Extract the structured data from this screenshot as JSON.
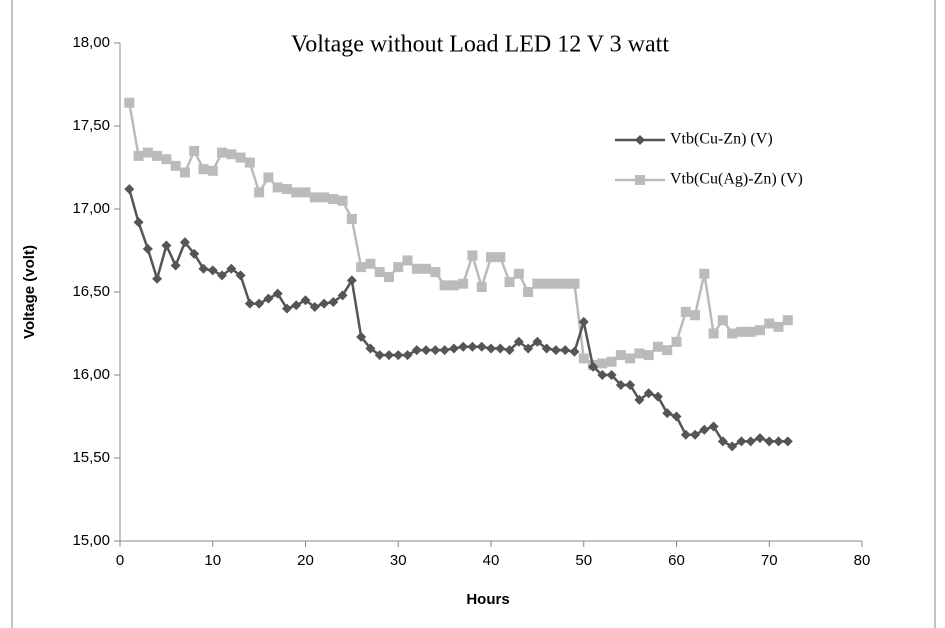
{
  "chart_data": {
    "type": "line",
    "title": "Voltage without Load LED 12 V 3 watt",
    "x_label": "Hours",
    "y_label": "Voltage (volt)",
    "x": [
      1,
      2,
      3,
      4,
      5,
      6,
      7,
      8,
      9,
      10,
      11,
      12,
      13,
      14,
      15,
      16,
      17,
      18,
      19,
      20,
      21,
      22,
      23,
      24,
      25,
      26,
      27,
      28,
      29,
      30,
      31,
      32,
      33,
      34,
      35,
      36,
      37,
      38,
      39,
      40,
      41,
      42,
      43,
      44,
      45,
      46,
      47,
      48,
      49,
      50,
      51,
      52,
      53,
      54,
      55,
      56,
      57,
      58,
      59,
      60,
      61,
      62,
      63,
      64,
      65,
      66,
      67,
      68,
      69,
      70,
      71,
      72
    ],
    "series": [
      {
        "name": "Vtb(Cu-Zn) (V)",
        "color": "#555555",
        "marker": "diamond",
        "values": [
          17.12,
          16.92,
          16.76,
          16.58,
          16.78,
          16.66,
          16.8,
          16.73,
          16.64,
          16.63,
          16.6,
          16.64,
          16.6,
          16.43,
          16.43,
          16.46,
          16.49,
          16.4,
          16.42,
          16.45,
          16.41,
          16.43,
          16.44,
          16.48,
          16.57,
          16.23,
          16.16,
          16.12,
          16.12,
          16.12,
          16.12,
          16.15,
          16.15,
          16.15,
          16.15,
          16.16,
          16.17,
          16.17,
          16.17,
          16.16,
          16.16,
          16.15,
          16.2,
          16.16,
          16.2,
          16.16,
          16.15,
          16.15,
          16.14,
          16.32,
          16.05,
          16.0,
          16.0,
          15.94,
          15.94,
          15.85,
          15.89,
          15.87,
          15.77,
          15.75,
          15.64,
          15.64,
          15.67,
          15.69,
          15.6,
          15.57,
          15.6,
          15.6,
          15.62,
          15.6,
          15.6,
          15.6
        ]
      },
      {
        "name": "Vtb(Cu(Ag)-Zn) (V)",
        "color": "#bbbbbb",
        "marker": "square",
        "values": [
          17.64,
          17.32,
          17.34,
          17.32,
          17.3,
          17.26,
          17.22,
          17.35,
          17.24,
          17.23,
          17.34,
          17.33,
          17.31,
          17.28,
          17.1,
          17.19,
          17.13,
          17.12,
          17.1,
          17.1,
          17.07,
          17.07,
          17.06,
          17.05,
          16.94,
          16.65,
          16.67,
          16.62,
          16.59,
          16.65,
          16.69,
          16.64,
          16.64,
          16.62,
          16.54,
          16.54,
          16.55,
          16.72,
          16.53,
          16.71,
          16.71,
          16.56,
          16.61,
          16.5,
          16.55,
          16.55,
          16.55,
          16.55,
          16.55,
          16.1,
          16.06,
          16.07,
          16.08,
          16.12,
          16.1,
          16.13,
          16.12,
          16.17,
          16.15,
          16.2,
          16.38,
          16.36,
          16.61,
          16.25,
          16.33,
          16.25,
          16.26,
          16.26,
          16.27,
          16.31,
          16.29,
          16.33
        ]
      }
    ],
    "xlim": [
      0,
      80
    ],
    "xticks": [
      0,
      10,
      20,
      30,
      40,
      50,
      60,
      70,
      80
    ],
    "ylim": [
      15,
      18
    ],
    "yticks": [
      {
        "value": 15,
        "label": "15,00"
      },
      {
        "value": 15.5,
        "label": "15,50"
      },
      {
        "value": 16,
        "label": "16,00"
      },
      {
        "value": 16.5,
        "label": "16,50"
      },
      {
        "value": 17,
        "label": "17,00"
      },
      {
        "value": 17.5,
        "label": "17,50"
      },
      {
        "value": 18,
        "label": "18,00"
      }
    ],
    "grid": false,
    "legend": "upper right"
  }
}
